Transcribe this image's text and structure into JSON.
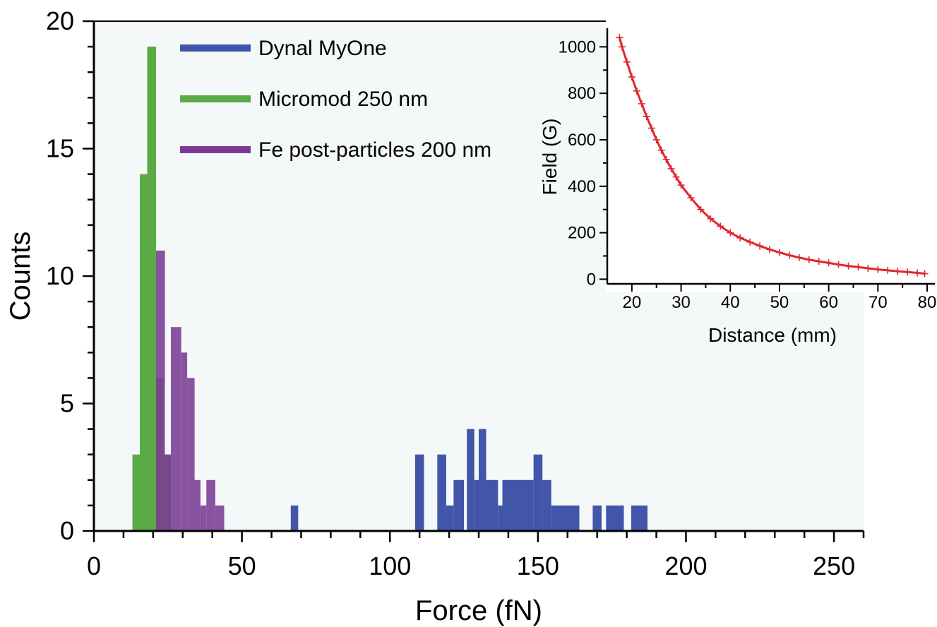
{
  "chart_data": [
    {
      "type": "bar",
      "subtype": "histogram",
      "xlabel": "Force (fN)",
      "ylabel": "Counts",
      "xlim": [
        0,
        260
      ],
      "ylim": [
        0,
        20
      ],
      "xticks": [
        0,
        50,
        100,
        150,
        200,
        250
      ],
      "xtick_labels": [
        "0",
        "50",
        "100",
        "150",
        "200",
        "250"
      ],
      "yticks": [
        0,
        5,
        10,
        15,
        20
      ],
      "ytick_labels": [
        "0",
        "5",
        "10",
        "15",
        "20"
      ],
      "legend_position": "top-left",
      "series": [
        {
          "name": "Dynal MyOne",
          "color": "#4156a8",
          "bins": [
            {
              "x0": 66.5,
              "x1": 69,
              "count": 1
            },
            {
              "x0": 108.5,
              "x1": 111.5,
              "count": 3
            },
            {
              "x0": 111.5,
              "x1": 116,
              "count": 0
            },
            {
              "x0": 116,
              "x1": 119,
              "count": 3
            },
            {
              "x0": 119,
              "x1": 121.5,
              "count": 1
            },
            {
              "x0": 121.5,
              "x1": 125,
              "count": 2
            },
            {
              "x0": 125,
              "x1": 126,
              "count": 0
            },
            {
              "x0": 126,
              "x1": 128.5,
              "count": 4
            },
            {
              "x0": 128.5,
              "x1": 130,
              "count": 2
            },
            {
              "x0": 130,
              "x1": 132.5,
              "count": 4
            },
            {
              "x0": 132.5,
              "x1": 136.5,
              "count": 2
            },
            {
              "x0": 136.5,
              "x1": 138,
              "count": 1
            },
            {
              "x0": 138,
              "x1": 148.5,
              "count": 2
            },
            {
              "x0": 148.5,
              "x1": 151.5,
              "count": 3
            },
            {
              "x0": 151.5,
              "x1": 154.5,
              "count": 2
            },
            {
              "x0": 154.5,
              "x1": 164,
              "count": 1
            },
            {
              "x0": 168.5,
              "x1": 171.5,
              "count": 1
            },
            {
              "x0": 173,
              "x1": 179,
              "count": 1
            },
            {
              "x0": 181.5,
              "x1": 187,
              "count": 1
            }
          ]
        },
        {
          "name": "Micromod 250 nm",
          "color": "#5aab45",
          "bins": [
            {
              "x0": 13,
              "x1": 15.5,
              "count": 3
            },
            {
              "x0": 15.5,
              "x1": 18,
              "count": 14
            },
            {
              "x0": 18,
              "x1": 21,
              "count": 19
            },
            {
              "x0": 21,
              "x1": 23.5,
              "count": 6
            },
            {
              "x0": 23.5,
              "x1": 26,
              "count": 3
            }
          ]
        },
        {
          "name": "Fe post-particles 200 nm",
          "color": "#7b3b94",
          "bins": [
            {
              "x0": 21,
              "x1": 24,
              "count": 11
            },
            {
              "x0": 24,
              "x1": 26,
              "count": 3
            },
            {
              "x0": 26,
              "x1": 29.5,
              "count": 8
            },
            {
              "x0": 29.5,
              "x1": 31.5,
              "count": 7
            },
            {
              "x0": 31.5,
              "x1": 34,
              "count": 6
            },
            {
              "x0": 34,
              "x1": 36,
              "count": 2
            },
            {
              "x0": 36,
              "x1": 38,
              "count": 1
            },
            {
              "x0": 38,
              "x1": 41,
              "count": 2
            },
            {
              "x0": 41,
              "x1": 44,
              "count": 1
            }
          ]
        }
      ]
    },
    {
      "type": "scatter",
      "marker": "+",
      "color": "#e0262e",
      "xlabel": "Distance (mm)",
      "ylabel": "Field (G)",
      "xlim": [
        15,
        81
      ],
      "ylim": [
        -20,
        1080
      ],
      "xticks": [
        20,
        30,
        40,
        50,
        60,
        70,
        80
      ],
      "xtick_labels": [
        "20",
        "30",
        "40",
        "50",
        "60",
        "70",
        "80"
      ],
      "yticks": [
        0,
        200,
        400,
        600,
        800,
        1000
      ],
      "ytick_labels": [
        "0",
        "200",
        "400",
        "600",
        "800",
        "1000"
      ],
      "x": [
        17.5,
        18,
        19,
        20,
        21,
        22,
        23,
        24,
        25,
        26,
        27,
        28,
        29,
        30,
        32,
        34,
        36,
        38,
        40,
        42,
        44,
        46,
        48,
        50,
        52,
        54,
        56,
        58,
        60,
        62,
        64,
        66,
        68,
        70,
        72,
        74,
        76,
        78,
        79.5
      ],
      "y": [
        1040,
        1000,
        935,
        870,
        810,
        755,
        700,
        650,
        600,
        555,
        515,
        475,
        440,
        405,
        350,
        300,
        260,
        228,
        200,
        178,
        160,
        143,
        128,
        115,
        103,
        93,
        84,
        77,
        70,
        63,
        57,
        52,
        47,
        42,
        38,
        34,
        31,
        27,
        24
      ]
    }
  ]
}
